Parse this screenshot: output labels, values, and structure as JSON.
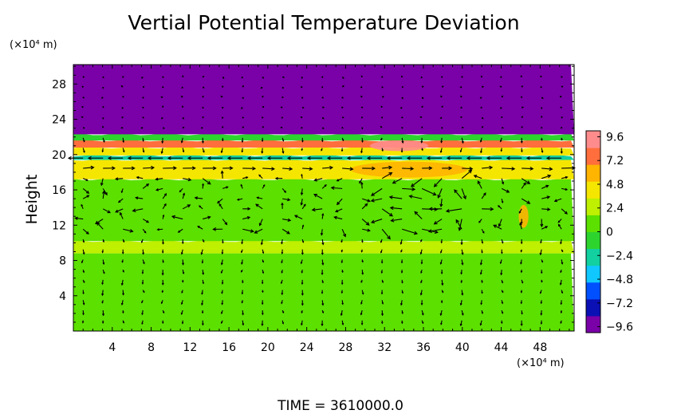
{
  "chart_data": {
    "type": "heatmap",
    "title": "Vertial Potential Temperature Deviation",
    "ylabel": "Height",
    "xlabel": "",
    "x_unit": "(×10⁴ m)",
    "y_unit": "(×10⁴ m)",
    "xlim": [
      0,
      51.5
    ],
    "ylim": [
      0,
      30.2
    ],
    "xticks": [
      4,
      8,
      12,
      16,
      20,
      24,
      28,
      32,
      36,
      40,
      44,
      48
    ],
    "yticks": [
      4,
      8,
      12,
      16,
      20,
      24,
      28
    ],
    "colorbar": {
      "min": -10.2,
      "max": 10.2,
      "ticks": [
        9.6,
        7.2,
        4.8,
        2.4,
        0,
        -2.4,
        -4.8,
        -7.2,
        -9.6
      ],
      "tick_labels": [
        "9.6",
        "7.2",
        "4.8",
        "2.4",
        "0",
        "−2.4",
        "−4.8",
        "−7.2",
        "−9.6"
      ],
      "colors": [
        "#7a00a8",
        "#0a10b4",
        "#0050ff",
        "#10c8ff",
        "#12d0a0",
        "#2ed42e",
        "#5ce000",
        "#bef000",
        "#f5e600",
        "#ffb400",
        "#ff6e3c",
        "#ff8c8c"
      ]
    },
    "field_bands": [
      {
        "y_from": 0,
        "y_to": 8.8,
        "value": 0.2
      },
      {
        "y_from": 8.8,
        "y_to": 10.2,
        "value": 1.8
      },
      {
        "y_from": 10.2,
        "y_to": 17.2,
        "value": 1.0
      },
      {
        "y_from": 17.2,
        "y_to": 19.4,
        "value": 4.3
      },
      {
        "y_from": 19.4,
        "y_to": 19.9,
        "value": -3.0
      },
      {
        "y_from": 19.9,
        "y_to": 20.8,
        "value": 3.5
      },
      {
        "y_from": 20.8,
        "y_to": 21.6,
        "value": 8.4
      },
      {
        "y_from": 21.6,
        "y_to": 22.3,
        "value": -1.5
      },
      {
        "y_from": 22.3,
        "y_to": 30.2,
        "value": -10.0
      }
    ],
    "field_patches": [
      {
        "x": 34.5,
        "y": 18.3,
        "rx": 6,
        "ry": 0.9,
        "value": 5.6
      },
      {
        "x": 46.3,
        "y": 13.0,
        "rx": 0.5,
        "ry": 1.3,
        "value": 6.5
      },
      {
        "x": 33.5,
        "y": 21.0,
        "rx": 3,
        "ry": 0.6,
        "value": 9.6
      }
    ],
    "vector_field": {
      "x_spacing": 2.05,
      "y_spacing": 1.15,
      "description_of_pattern": [
        "strong westward jet near 19 km",
        "eastward flow near 18 km",
        "mixed circulation 11-16 km",
        "weak flow below 10 km and above 22 km"
      ]
    }
  },
  "footer": {
    "time_label": "TIME  =  3610000.0"
  }
}
